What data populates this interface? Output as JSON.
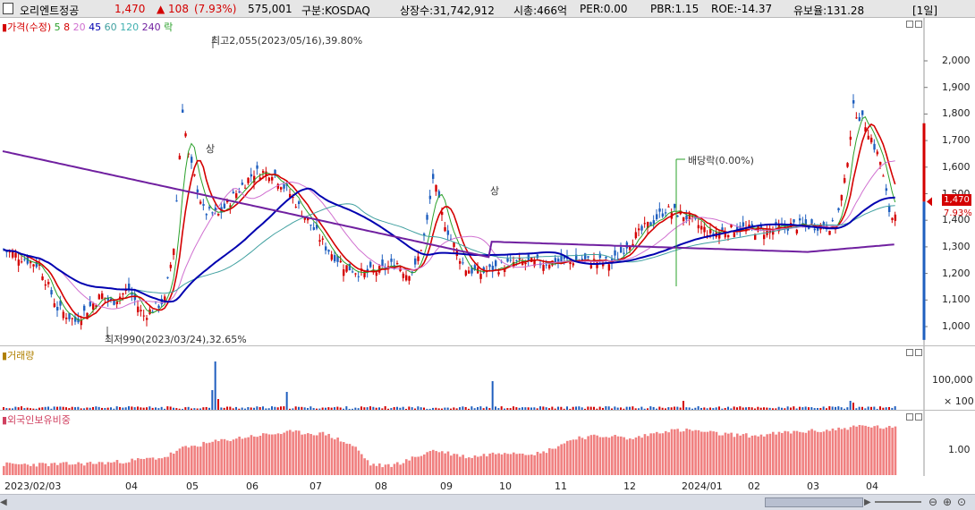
{
  "header": {
    "name": "오리엔트정공",
    "price": "1,470",
    "change": "▲ 108",
    "change_pct": "(7.93%)",
    "volume": "575,001",
    "market": "구분:KOSDAQ",
    "shares": "상장수:31,742,912",
    "mktcap": "시총:466억",
    "per": "PER:0.00",
    "pbr": "PBR:1.15",
    "roe": "ROE:-14.37",
    "float": "유보율:131.28",
    "period": "[1일]"
  },
  "price_pane": {
    "legend": [
      {
        "text": "가격(수정)",
        "color": "#d40000"
      },
      {
        "text": "5",
        "color": "#2aa02a"
      },
      {
        "text": "8",
        "color": "#d40000"
      },
      {
        "text": "20",
        "color": "#d070d0"
      },
      {
        "text": "45",
        "color": "#0000b0"
      },
      {
        "text": "60",
        "color": "#40a0a0"
      },
      {
        "text": "120",
        "color": "#40b0b0"
      },
      {
        "text": "240",
        "color": "#7020a0"
      },
      {
        "text": "락",
        "color": "#2aa02a"
      }
    ],
    "annotations": {
      "high": "최고2,055(2023/05/16),39.80%",
      "low": "최저990(2023/03/24),32.65%",
      "dividend": "배당락(0.00%)",
      "up_mark_1": "상",
      "up_mark_2": "상"
    },
    "y_ticks": [
      "2,000",
      "1,900",
      "1,800",
      "1,700",
      "1,600",
      "1,500",
      "1,400",
      "1,300",
      "1,200",
      "1,100",
      "1,000"
    ],
    "last_price_label": "1,470",
    "last_pct_label": "7.93%"
  },
  "volume_pane": {
    "legend": "거래량",
    "y_ticks": [
      "100,000",
      "× 100"
    ]
  },
  "foreign_pane": {
    "legend": "외국인보유비중",
    "y_ticks": [
      "1.00"
    ]
  },
  "x_axis": [
    "2023/02/03",
    "04",
    "05",
    "06",
    "07",
    "08",
    "09",
    "10",
    "11",
    "12",
    "2024/01",
    "02",
    "03",
    "04"
  ],
  "colors": {
    "up": "#d40000",
    "down": "#1f5fbf",
    "ma5": "#2aa02a",
    "ma8": "#d40000",
    "ma20": "#d070d0",
    "ma45": "#0000b0",
    "ma60": "#40a0a0",
    "ma240": "#7020a0",
    "foreign": "#f08080"
  }
}
